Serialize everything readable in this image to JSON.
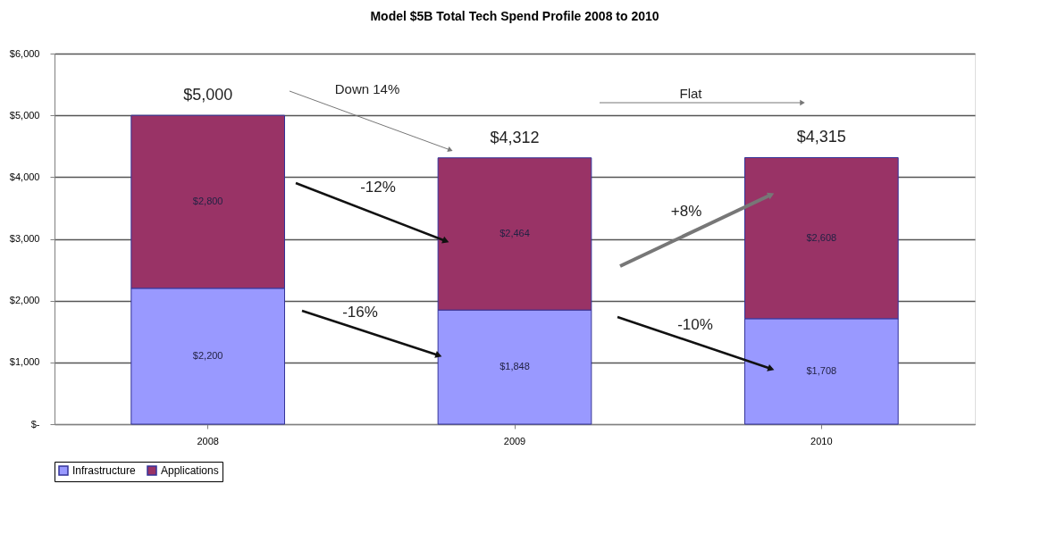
{
  "chart_data": {
    "type": "bar",
    "title": "Model $5B Total Tech Spend Profile 2008 to 2010",
    "categories": [
      "2008",
      "2009",
      "2010"
    ],
    "stacked": true,
    "series": [
      {
        "name": "Infrastructure",
        "color": "#9999ff",
        "values": [
          2200,
          1848,
          1708
        ],
        "value_labels": [
          "$2,200",
          "$1,848",
          "$1,708"
        ]
      },
      {
        "name": "Applications",
        "color": "#993366",
        "values": [
          2800,
          2464,
          2608
        ],
        "value_labels": [
          "$2,800",
          "$2,464",
          "$2,608"
        ]
      }
    ],
    "totals": [
      "$5,000",
      "$4,312",
      "$4,315"
    ],
    "ylim": [
      0,
      6000
    ],
    "yticks": [
      {
        "value": 0,
        "label": "$-"
      },
      {
        "value": 1000,
        "label": "$1,000"
      },
      {
        "value": 2000,
        "label": "$2,000"
      },
      {
        "value": 3000,
        "label": "$3,000"
      },
      {
        "value": 4000,
        "label": "$4,000"
      },
      {
        "value": 5000,
        "label": "$5,000"
      },
      {
        "value": 6000,
        "label": "$6,000"
      }
    ],
    "annotations": [
      "Down 14%",
      "Flat",
      "-12%",
      "-16%",
      "+8%",
      "-10%"
    ],
    "grid": "y",
    "legend": "bottom"
  }
}
